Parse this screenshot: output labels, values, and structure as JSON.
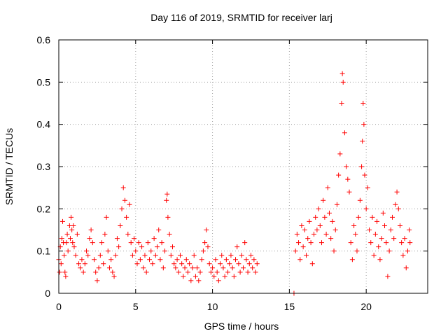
{
  "chart_data": {
    "type": "scatter",
    "title": "Day 116 of 2019, SRMTID for receiver larj",
    "xlabel": "GPS time / hours",
    "ylabel": "SRMTID / TECUs",
    "xlim": [
      0,
      24
    ],
    "ylim": [
      0,
      0.6
    ],
    "xticks": [
      0,
      5,
      10,
      15,
      20
    ],
    "xtick_labels": [
      "0",
      "5",
      "10",
      "15",
      "20"
    ],
    "yticks": [
      0,
      0.1,
      0.2,
      0.3,
      0.4,
      0.5,
      0.6
    ],
    "ytick_labels": [
      "0",
      "0.1",
      "0.2",
      "0.3",
      "0.4",
      "0.5",
      "0.6"
    ],
    "grid": true,
    "marker": "+",
    "color": "#ff0000",
    "series": [
      {
        "name": "SRMTID",
        "points": [
          [
            0.0,
            0.08
          ],
          [
            0.05,
            0.05
          ],
          [
            0.1,
            0.11
          ],
          [
            0.15,
            0.07
          ],
          [
            0.2,
            0.13
          ],
          [
            0.25,
            0.17
          ],
          [
            0.3,
            0.12
          ],
          [
            0.35,
            0.09
          ],
          [
            0.4,
            0.05
          ],
          [
            0.45,
            0.04
          ],
          [
            0.5,
            0.12
          ],
          [
            0.55,
            0.14
          ],
          [
            0.6,
            0.1
          ],
          [
            0.7,
            0.16
          ],
          [
            0.75,
            0.13
          ],
          [
            0.8,
            0.18
          ],
          [
            0.85,
            0.15
          ],
          [
            0.9,
            0.12
          ],
          [
            0.95,
            0.16
          ],
          [
            1.0,
            0.11
          ],
          [
            1.1,
            0.09
          ],
          [
            1.2,
            0.14
          ],
          [
            1.3,
            0.07
          ],
          [
            1.4,
            0.06
          ],
          [
            1.5,
            0.08
          ],
          [
            1.6,
            0.05
          ],
          [
            1.7,
            0.07
          ],
          [
            1.8,
            0.1
          ],
          [
            1.9,
            0.09
          ],
          [
            2.0,
            0.13
          ],
          [
            2.1,
            0.15
          ],
          [
            2.2,
            0.12
          ],
          [
            2.3,
            0.08
          ],
          [
            2.4,
            0.05
          ],
          [
            2.5,
            0.03
          ],
          [
            2.6,
            0.06
          ],
          [
            2.7,
            0.09
          ],
          [
            2.8,
            0.12
          ],
          [
            2.9,
            0.07
          ],
          [
            3.0,
            0.14
          ],
          [
            3.1,
            0.18
          ],
          [
            3.2,
            0.1
          ],
          [
            3.3,
            0.06
          ],
          [
            3.4,
            0.08
          ],
          [
            3.5,
            0.05
          ],
          [
            3.6,
            0.04
          ],
          [
            3.7,
            0.09
          ],
          [
            3.8,
            0.13
          ],
          [
            3.9,
            0.11
          ],
          [
            4.0,
            0.16
          ],
          [
            4.1,
            0.2
          ],
          [
            4.2,
            0.25
          ],
          [
            4.3,
            0.22
          ],
          [
            4.4,
            0.18
          ],
          [
            4.5,
            0.14
          ],
          [
            4.6,
            0.21
          ],
          [
            4.7,
            0.12
          ],
          [
            4.8,
            0.09
          ],
          [
            4.9,
            0.13
          ],
          [
            5.0,
            0.1
          ],
          [
            5.1,
            0.07
          ],
          [
            5.2,
            0.12
          ],
          [
            5.3,
            0.08
          ],
          [
            5.4,
            0.11
          ],
          [
            5.5,
            0.06
          ],
          [
            5.6,
            0.09
          ],
          [
            5.7,
            0.05
          ],
          [
            5.8,
            0.12
          ],
          [
            5.9,
            0.08
          ],
          [
            6.0,
            0.1
          ],
          [
            6.1,
            0.07
          ],
          [
            6.2,
            0.13
          ],
          [
            6.3,
            0.09
          ],
          [
            6.4,
            0.11
          ],
          [
            6.5,
            0.15
          ],
          [
            6.6,
            0.08
          ],
          [
            6.7,
            0.12
          ],
          [
            6.8,
            0.06
          ],
          [
            6.9,
            0.1
          ],
          [
            7.0,
            0.22
          ],
          [
            7.05,
            0.235
          ],
          [
            7.1,
            0.18
          ],
          [
            7.2,
            0.14
          ],
          [
            7.3,
            0.09
          ],
          [
            7.4,
            0.11
          ],
          [
            7.5,
            0.07
          ],
          [
            7.6,
            0.06
          ],
          [
            7.7,
            0.08
          ],
          [
            7.8,
            0.05
          ],
          [
            7.9,
            0.09
          ],
          [
            8.0,
            0.07
          ],
          [
            8.1,
            0.04
          ],
          [
            8.2,
            0.06
          ],
          [
            8.3,
            0.08
          ],
          [
            8.4,
            0.05
          ],
          [
            8.5,
            0.07
          ],
          [
            8.6,
            0.03
          ],
          [
            8.7,
            0.06
          ],
          [
            8.8,
            0.09
          ],
          [
            8.9,
            0.04
          ],
          [
            9.0,
            0.06
          ],
          [
            9.1,
            0.03
          ],
          [
            9.2,
            0.05
          ],
          [
            9.3,
            0.08
          ],
          [
            9.4,
            0.1
          ],
          [
            9.5,
            0.12
          ],
          [
            9.6,
            0.15
          ],
          [
            9.7,
            0.11
          ],
          [
            9.8,
            0.07
          ],
          [
            9.9,
            0.05
          ],
          [
            10.0,
            0.06
          ],
          [
            10.1,
            0.04
          ],
          [
            10.2,
            0.08
          ],
          [
            10.3,
            0.05
          ],
          [
            10.4,
            0.03
          ],
          [
            10.5,
            0.07
          ],
          [
            10.6,
            0.09
          ],
          [
            10.7,
            0.06
          ],
          [
            10.8,
            0.04
          ],
          [
            10.9,
            0.08
          ],
          [
            11.0,
            0.05
          ],
          [
            11.1,
            0.07
          ],
          [
            11.2,
            0.09
          ],
          [
            11.3,
            0.06
          ],
          [
            11.4,
            0.04
          ],
          [
            11.5,
            0.08
          ],
          [
            11.6,
            0.11
          ],
          [
            11.7,
            0.07
          ],
          [
            11.8,
            0.05
          ],
          [
            11.9,
            0.09
          ],
          [
            12.0,
            0.06
          ],
          [
            12.1,
            0.12
          ],
          [
            12.2,
            0.08
          ],
          [
            12.3,
            0.05
          ],
          [
            12.4,
            0.07
          ],
          [
            12.5,
            0.09
          ],
          [
            12.6,
            0.06
          ],
          [
            12.7,
            0.08
          ],
          [
            12.8,
            0.05
          ],
          [
            12.9,
            0.07
          ],
          [
            15.3,
            0.0
          ],
          [
            15.4,
            0.1
          ],
          [
            15.5,
            0.14
          ],
          [
            15.6,
            0.12
          ],
          [
            15.7,
            0.08
          ],
          [
            15.8,
            0.16
          ],
          [
            15.9,
            0.11
          ],
          [
            16.0,
            0.15
          ],
          [
            16.1,
            0.09
          ],
          [
            16.2,
            0.13
          ],
          [
            16.3,
            0.17
          ],
          [
            16.4,
            0.12
          ],
          [
            16.5,
            0.07
          ],
          [
            16.6,
            0.14
          ],
          [
            16.7,
            0.18
          ],
          [
            16.8,
            0.15
          ],
          [
            16.9,
            0.2
          ],
          [
            17.0,
            0.16
          ],
          [
            17.1,
            0.12
          ],
          [
            17.2,
            0.22
          ],
          [
            17.3,
            0.18
          ],
          [
            17.4,
            0.14
          ],
          [
            17.5,
            0.25
          ],
          [
            17.6,
            0.19
          ],
          [
            17.7,
            0.13
          ],
          [
            17.8,
            0.17
          ],
          [
            17.9,
            0.1
          ],
          [
            18.0,
            0.15
          ],
          [
            18.1,
            0.21
          ],
          [
            18.2,
            0.28
          ],
          [
            18.3,
            0.33
          ],
          [
            18.4,
            0.45
          ],
          [
            18.45,
            0.52
          ],
          [
            18.5,
            0.5
          ],
          [
            18.6,
            0.38
          ],
          [
            18.7,
            0.3
          ],
          [
            18.8,
            0.27
          ],
          [
            18.9,
            0.24
          ],
          [
            19.0,
            0.12
          ],
          [
            19.1,
            0.08
          ],
          [
            19.2,
            0.16
          ],
          [
            19.3,
            0.14
          ],
          [
            19.4,
            0.1
          ],
          [
            19.5,
            0.18
          ],
          [
            19.6,
            0.22
          ],
          [
            19.7,
            0.3
          ],
          [
            19.75,
            0.36
          ],
          [
            19.8,
            0.45
          ],
          [
            19.85,
            0.4
          ],
          [
            19.9,
            0.28
          ],
          [
            20.0,
            0.2
          ],
          [
            20.1,
            0.25
          ],
          [
            20.2,
            0.15
          ],
          [
            20.3,
            0.12
          ],
          [
            20.4,
            0.18
          ],
          [
            20.5,
            0.09
          ],
          [
            20.6,
            0.14
          ],
          [
            20.7,
            0.17
          ],
          [
            20.8,
            0.11
          ],
          [
            20.9,
            0.08
          ],
          [
            21.0,
            0.13
          ],
          [
            21.1,
            0.19
          ],
          [
            21.2,
            0.16
          ],
          [
            21.3,
            0.12
          ],
          [
            21.4,
            0.04
          ],
          [
            21.5,
            0.1
          ],
          [
            21.6,
            0.15
          ],
          [
            21.7,
            0.18
          ],
          [
            21.8,
            0.13
          ],
          [
            21.9,
            0.21
          ],
          [
            22.0,
            0.24
          ],
          [
            22.1,
            0.2
          ],
          [
            22.2,
            0.16
          ],
          [
            22.3,
            0.12
          ],
          [
            22.4,
            0.09
          ],
          [
            22.5,
            0.13
          ],
          [
            22.6,
            0.06
          ],
          [
            22.7,
            0.1
          ],
          [
            22.8,
            0.15
          ],
          [
            22.85,
            0.12
          ]
        ]
      }
    ]
  }
}
